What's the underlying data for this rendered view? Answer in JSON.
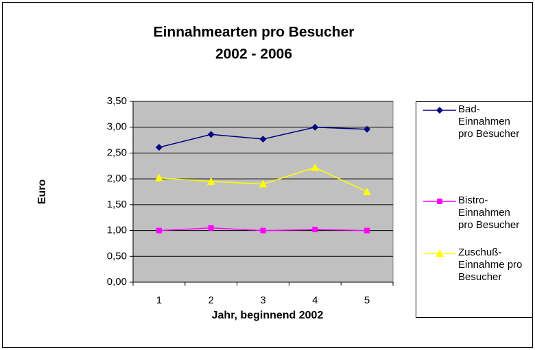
{
  "chart_data": {
    "type": "line",
    "title": "Einnahmearten pro Besucher",
    "subtitle": "2002 - 2006",
    "x_label": "Jahr, beginnend 2002",
    "y_label": "Euro",
    "categories": [
      "1",
      "2",
      "3",
      "4",
      "5"
    ],
    "series": [
      {
        "name": "Bad-Einnahmen pro Besucher",
        "color": "#000080",
        "marker": "diamond",
        "values": [
          2.61,
          2.86,
          2.77,
          3.0,
          2.96
        ]
      },
      {
        "name": "Bistro-Einnahmen pro Besucher",
        "color": "#ff00ff",
        "marker": "square",
        "values": [
          1.0,
          1.05,
          1.0,
          1.02,
          1.0
        ]
      },
      {
        "name": "Zuschuß-Einnahme pro Besucher",
        "color": "#ffff00",
        "marker": "triangle",
        "values": [
          2.02,
          1.95,
          1.9,
          2.22,
          1.75
        ]
      }
    ],
    "ylim": [
      0,
      3.5
    ],
    "yticks": [
      {
        "value": 0,
        "label": "0,00"
      },
      {
        "value": 0.5,
        "label": "0,50"
      },
      {
        "value": 1,
        "label": "1,00"
      },
      {
        "value": 1.5,
        "label": "1,50"
      },
      {
        "value": 2,
        "label": "2,00"
      },
      {
        "value": 2.5,
        "label": "2,50"
      },
      {
        "value": 3,
        "label": "3,00"
      },
      {
        "value": 3.5,
        "label": "3,50"
      }
    ],
    "grid": true,
    "plot_background": "#c0c0c0",
    "legend": "right"
  }
}
